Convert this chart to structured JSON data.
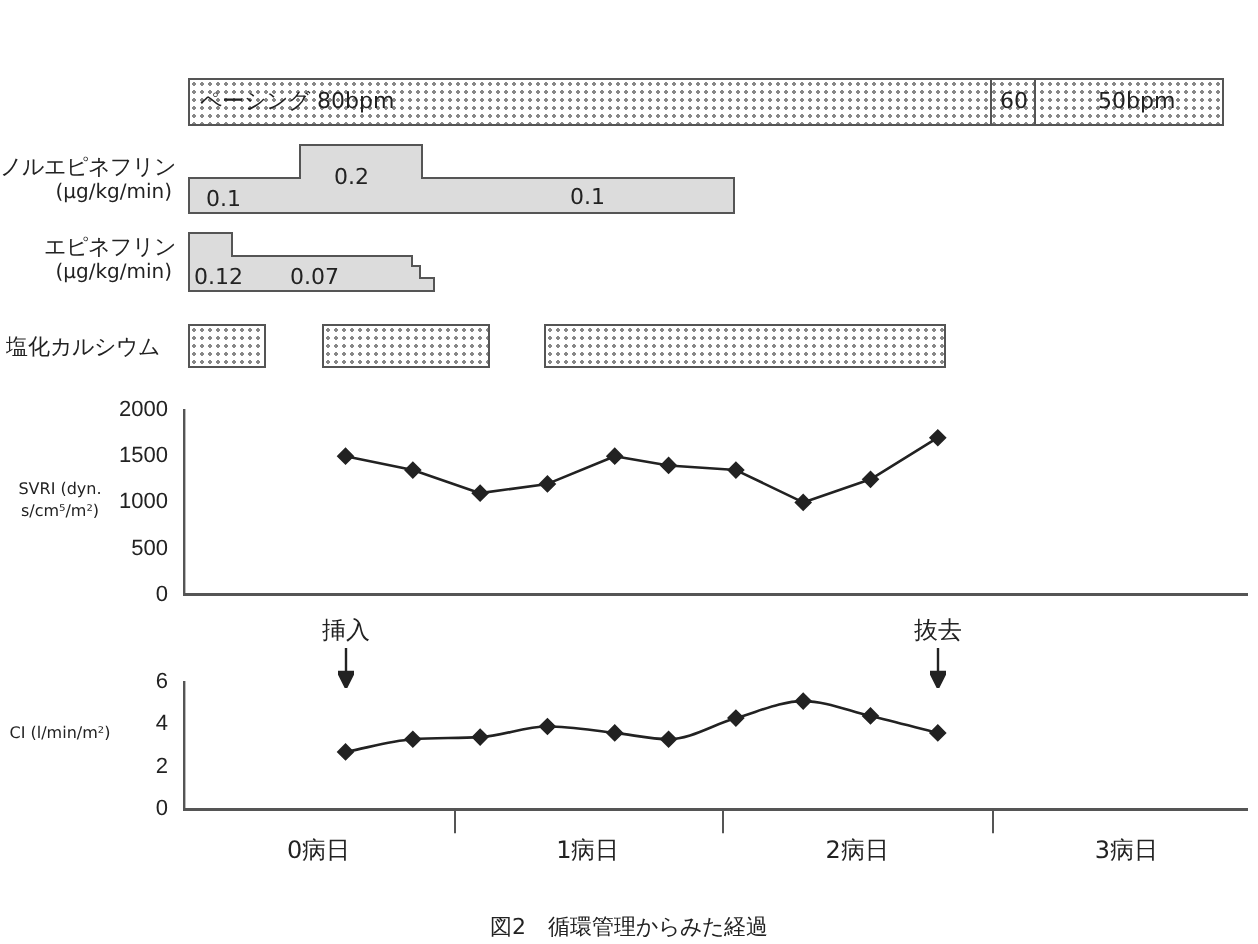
{
  "chart_data": [
    {
      "type": "other",
      "annotations": [
        "ペーシング 80bpm",
        "60",
        "50bpm",
        "ノルエピネフリン",
        "(μg/kg/min)",
        "0.1",
        "0.2",
        "0.1",
        "エピネフリン",
        "(μg/kg/min)",
        "0.12",
        "0.07",
        "塩化カルシウム"
      ]
    },
    {
      "type": "line",
      "ylabel": "SVRI (dyn. s/cm⁵/m²)",
      "x": [
        0.6,
        0.85,
        1.1,
        1.35,
        1.6,
        1.8,
        2.05,
        2.3,
        2.55,
        2.8
      ],
      "series": [
        {
          "color": "#222222",
          "values": [
            1500,
            1350,
            1100,
            1200,
            1500,
            1400,
            1350,
            1000,
            1250,
            1700
          ]
        }
      ],
      "xlim": [
        0,
        3.95
      ],
      "ylim": [
        0,
        2000
      ],
      "yticks": [
        0,
        500,
        1000,
        1500,
        2000
      ],
      "tick_labels": "y",
      "marker": "diamond"
    },
    {
      "type": "line",
      "ylabel": "CI (l/min/m²)",
      "x": [
        0.6,
        0.85,
        1.1,
        1.35,
        1.6,
        1.8,
        2.05,
        2.3,
        2.55,
        2.8
      ],
      "series": [
        {
          "color": "#222222",
          "values": [
            2.7,
            3.3,
            3.4,
            3.9,
            3.6,
            3.3,
            4.3,
            5.1,
            4.4,
            3.6
          ]
        }
      ],
      "xlim": [
        0,
        3.95
      ],
      "xticks": [
        {
          "value": 0,
          "label": null
        },
        {
          "value": 0.5,
          "label": "0病日"
        },
        {
          "value": 1,
          "label": null
        },
        {
          "value": 1.5,
          "label": "1病日"
        },
        {
          "value": 2,
          "label": null
        },
        {
          "value": 2.5,
          "label": "2病日"
        },
        {
          "value": 3,
          "label": null
        },
        {
          "value": 3.5,
          "label": "3病日"
        }
      ],
      "ylim": [
        0,
        6
      ],
      "yticks": [
        0,
        2,
        4,
        6
      ],
      "marker": "diamond",
      "annotations": [
        {
          "text": "挿入",
          "x": 0.6
        },
        {
          "text": "抜去",
          "x": 2.8
        },
        "図2　循環管理からみた経過"
      ]
    }
  ]
}
